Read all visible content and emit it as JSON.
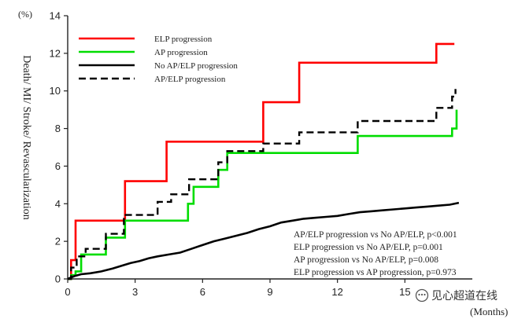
{
  "chart_data": {
    "type": "line",
    "ylabel": "Death/ MI/ Stroke/ Revascularization",
    "yunit": "(%)",
    "xunit": "(Months)",
    "xlim": [
      0,
      18
    ],
    "ylim": [
      0,
      14
    ],
    "xticks": [
      0,
      3,
      6,
      9,
      12,
      15
    ],
    "yticks": [
      0,
      2,
      4,
      6,
      8,
      10,
      12,
      14
    ],
    "grid": false,
    "legend_position": "top-left",
    "series": [
      {
        "name": "ELP progression",
        "color": "#ff0000",
        "dash": "solid",
        "x": [
          0.0,
          0.15,
          0.15,
          0.35,
          0.35,
          2.55,
          2.55,
          4.4,
          4.4,
          8.7,
          8.7,
          10.3,
          10.3,
          16.4,
          16.4,
          17.2
        ],
        "y": [
          0.0,
          0.0,
          1.0,
          1.0,
          3.1,
          3.1,
          5.2,
          5.2,
          7.3,
          7.3,
          9.4,
          9.4,
          11.5,
          11.5,
          12.5,
          12.5
        ]
      },
      {
        "name": "AP progression",
        "color": "#00dd00",
        "dash": "solid",
        "x": [
          0.0,
          0.15,
          0.15,
          0.35,
          0.35,
          0.6,
          0.6,
          1.7,
          1.7,
          2.55,
          2.55,
          5.35,
          5.35,
          5.6,
          5.6,
          6.7,
          6.7,
          7.1,
          7.1,
          12.9,
          12.9,
          17.1,
          17.1,
          17.3,
          17.3
        ],
        "y": [
          0.0,
          0.0,
          0.2,
          0.2,
          0.4,
          0.4,
          1.3,
          1.3,
          2.2,
          2.2,
          3.1,
          3.1,
          4.0,
          4.0,
          4.9,
          4.9,
          5.8,
          5.8,
          6.7,
          6.7,
          7.6,
          7.6,
          8.0,
          8.0,
          9.0
        ]
      },
      {
        "name": "No AP/ELP progression",
        "color": "#000000",
        "dash": "solid",
        "x": [
          0.0,
          0.3,
          0.6,
          1.0,
          1.5,
          2.0,
          2.4,
          2.8,
          3.2,
          3.6,
          4.0,
          4.5,
          5.0,
          5.5,
          6.0,
          6.5,
          7.0,
          7.5,
          8.0,
          8.5,
          9.0,
          9.5,
          10.0,
          10.5,
          11.0,
          11.5,
          12.0,
          12.5,
          13.0,
          13.5,
          14.0,
          14.5,
          15.0,
          15.5,
          16.0,
          16.5,
          17.0,
          17.4
        ],
        "y": [
          0.0,
          0.15,
          0.25,
          0.3,
          0.4,
          0.55,
          0.7,
          0.85,
          0.95,
          1.1,
          1.2,
          1.3,
          1.4,
          1.6,
          1.8,
          2.0,
          2.15,
          2.3,
          2.45,
          2.65,
          2.8,
          3.0,
          3.1,
          3.2,
          3.25,
          3.3,
          3.35,
          3.45,
          3.55,
          3.6,
          3.65,
          3.7,
          3.75,
          3.8,
          3.85,
          3.9,
          3.95,
          4.05
        ]
      },
      {
        "name": "AP/ELP progression",
        "color": "#000000",
        "dash": "dashed",
        "x": [
          0.0,
          0.15,
          0.15,
          0.4,
          0.4,
          0.8,
          0.8,
          1.7,
          1.7,
          2.5,
          2.5,
          4.0,
          4.0,
          4.6,
          4.6,
          5.4,
          5.4,
          6.7,
          6.7,
          7.1,
          7.1,
          8.7,
          8.7,
          10.3,
          10.3,
          12.9,
          12.9,
          16.4,
          16.4,
          17.1,
          17.1,
          17.25,
          17.25
        ],
        "y": [
          0.0,
          0.0,
          0.6,
          0.6,
          1.2,
          1.2,
          1.6,
          1.6,
          2.4,
          2.4,
          3.4,
          3.4,
          4.1,
          4.1,
          4.5,
          4.5,
          5.3,
          5.3,
          6.2,
          6.2,
          6.8,
          6.8,
          7.2,
          7.2,
          7.8,
          7.8,
          8.4,
          8.4,
          9.1,
          9.1,
          9.7,
          9.7,
          10.1
        ]
      }
    ],
    "annotations": [
      "AP/ELP progression vs No AP/ELP, p<0.001",
      "ELP progression vs No AP/ELP, p=0.001",
      "AP progression vs No AP/ELP, p=0.008",
      "ELP progression vs AP progression, p=0.973"
    ]
  },
  "watermark": {
    "icon": "wechat-bubble-icon",
    "text": "见心超道在线"
  }
}
